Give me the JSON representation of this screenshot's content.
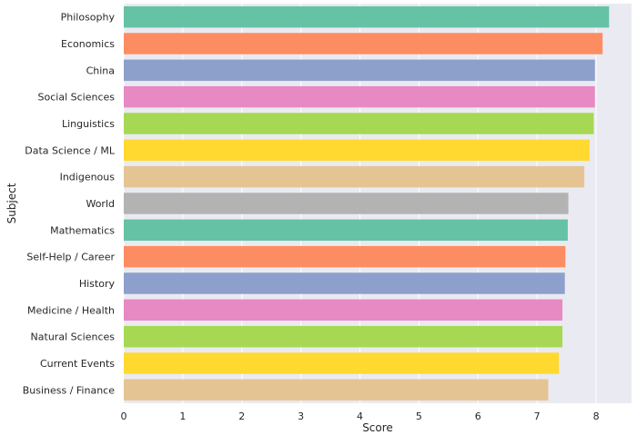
{
  "chart_data": {
    "type": "bar",
    "orientation": "horizontal",
    "xlabel": "Score",
    "ylabel": "Subject",
    "xlim": [
      0,
      8.6
    ],
    "xticks": [
      0,
      1,
      2,
      3,
      4,
      5,
      6,
      7,
      8
    ],
    "grid": true,
    "background": "#eaeaf2",
    "categories": [
      "Philosophy",
      "Economics",
      "China",
      "Social Sciences",
      "Linguistics",
      "Data Science / ML",
      "Indigenous",
      "World",
      "Mathematics",
      "Self-Help / Career",
      "History",
      "Medicine / Health",
      "Natural Sciences",
      "Current Events",
      "Business / Finance"
    ],
    "values": [
      8.22,
      8.11,
      7.98,
      7.98,
      7.96,
      7.89,
      7.8,
      7.53,
      7.52,
      7.48,
      7.47,
      7.43,
      7.43,
      7.37,
      7.19
    ],
    "colors": [
      "#66c2a5",
      "#fc8d62",
      "#8da0cb",
      "#e78ac3",
      "#a6d854",
      "#ffd92f",
      "#e5c494",
      "#b3b3b3",
      "#66c2a5",
      "#fc8d62",
      "#8da0cb",
      "#e78ac3",
      "#a6d854",
      "#ffd92f",
      "#e5c494"
    ]
  }
}
